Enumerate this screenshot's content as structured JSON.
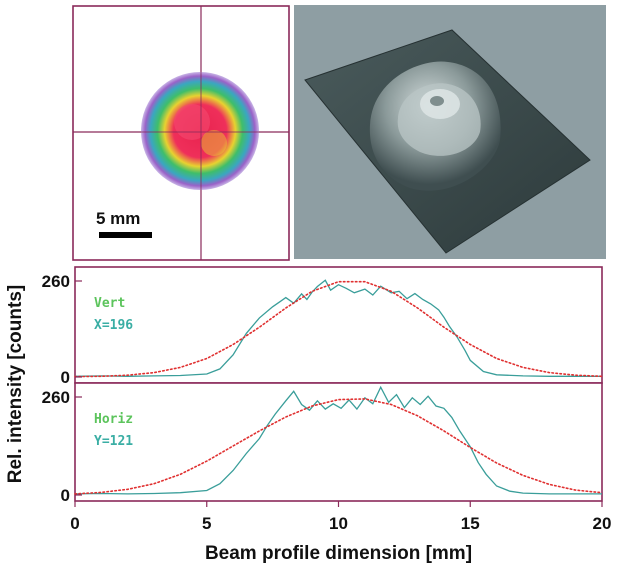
{
  "images": {
    "scale_bar_label": "5 mm"
  },
  "chart_data": [
    {
      "type": "line",
      "panel": "vertical",
      "annotation_lines": [
        "Vert",
        "X=196"
      ],
      "ylim": [
        0,
        260
      ],
      "y_ticks": [
        "260",
        "0"
      ],
      "xlim": [
        0,
        20
      ],
      "series": [
        {
          "color": "#3a9e9a",
          "style": "solid",
          "x": [
            0,
            1,
            2,
            3,
            4,
            5,
            5.5,
            6,
            6.5,
            7,
            7.5,
            7.8,
            8,
            8.3,
            8.6,
            8.8,
            9,
            9.2,
            9.5,
            9.7,
            10,
            10.3,
            10.6,
            11,
            11.3,
            11.6,
            12,
            12.3,
            12.6,
            12.9,
            13.2,
            13.5,
            13.8,
            14,
            14.2,
            14.5,
            14.8,
            15,
            15.5,
            16,
            17,
            18,
            19,
            20
          ],
          "y": [
            2,
            3,
            2,
            3,
            4,
            8,
            22,
            60,
            118,
            160,
            190,
            205,
            215,
            200,
            225,
            210,
            230,
            245,
            262,
            235,
            250,
            240,
            228,
            238,
            222,
            246,
            228,
            232,
            212,
            226,
            210,
            198,
            182,
            162,
            138,
            108,
            72,
            45,
            15,
            6,
            3,
            2,
            2,
            2
          ]
        },
        {
          "color": "#e03030",
          "style": "dotted",
          "x": [
            0,
            1,
            2,
            3,
            4,
            5,
            6,
            7,
            8,
            9,
            10,
            11,
            12,
            13,
            14,
            15,
            16,
            17,
            18,
            19,
            20
          ],
          "y": [
            1,
            2,
            5,
            12,
            26,
            50,
            88,
            135,
            187,
            232,
            258,
            258,
            232,
            187,
            135,
            88,
            50,
            26,
            12,
            5,
            2
          ]
        }
      ]
    },
    {
      "type": "line",
      "panel": "horizontal",
      "annotation_lines": [
        "Horiz",
        "Y=121"
      ],
      "ylim": [
        0,
        260
      ],
      "y_ticks": [
        "260",
        "0"
      ],
      "xlim": [
        0,
        20
      ],
      "xlabel": "Beam profile dimension [mm]",
      "ylabel": "Rel. intensity [counts]",
      "x_ticks": [
        "0",
        "5",
        "10",
        "15",
        "20"
      ],
      "series": [
        {
          "color": "#3a9e9a",
          "style": "solid",
          "x": [
            0,
            1,
            2,
            3,
            4,
            5,
            5.5,
            6,
            6.5,
            7,
            7.3,
            7.6,
            8,
            8.3,
            8.6,
            8.9,
            9.2,
            9.5,
            9.8,
            10.1,
            10.4,
            10.7,
            11,
            11.3,
            11.6,
            11.9,
            12.2,
            12.5,
            12.8,
            13.1,
            13.4,
            13.7,
            14,
            14.3,
            14.6,
            15,
            15.3,
            15.6,
            16,
            16.5,
            17,
            18,
            19,
            20
          ],
          "y": [
            3,
            4,
            3,
            4,
            6,
            12,
            30,
            65,
            110,
            150,
            185,
            215,
            250,
            275,
            240,
            225,
            250,
            228,
            242,
            230,
            252,
            228,
            258,
            242,
            286,
            246,
            266,
            232,
            258,
            240,
            262,
            236,
            230,
            206,
            170,
            128,
            86,
            55,
            24,
            10,
            5,
            3,
            3,
            3
          ]
        },
        {
          "color": "#e03030",
          "style": "dotted",
          "x": [
            0,
            1,
            2,
            3,
            4,
            5,
            6,
            7,
            8,
            9,
            10,
            11,
            12,
            13,
            14,
            15,
            16,
            17,
            18,
            19,
            20
          ],
          "y": [
            3,
            7,
            15,
            30,
            55,
            90,
            130,
            170,
            207,
            236,
            253,
            255,
            240,
            210,
            170,
            126,
            85,
            52,
            28,
            13,
            6
          ]
        }
      ]
    }
  ]
}
